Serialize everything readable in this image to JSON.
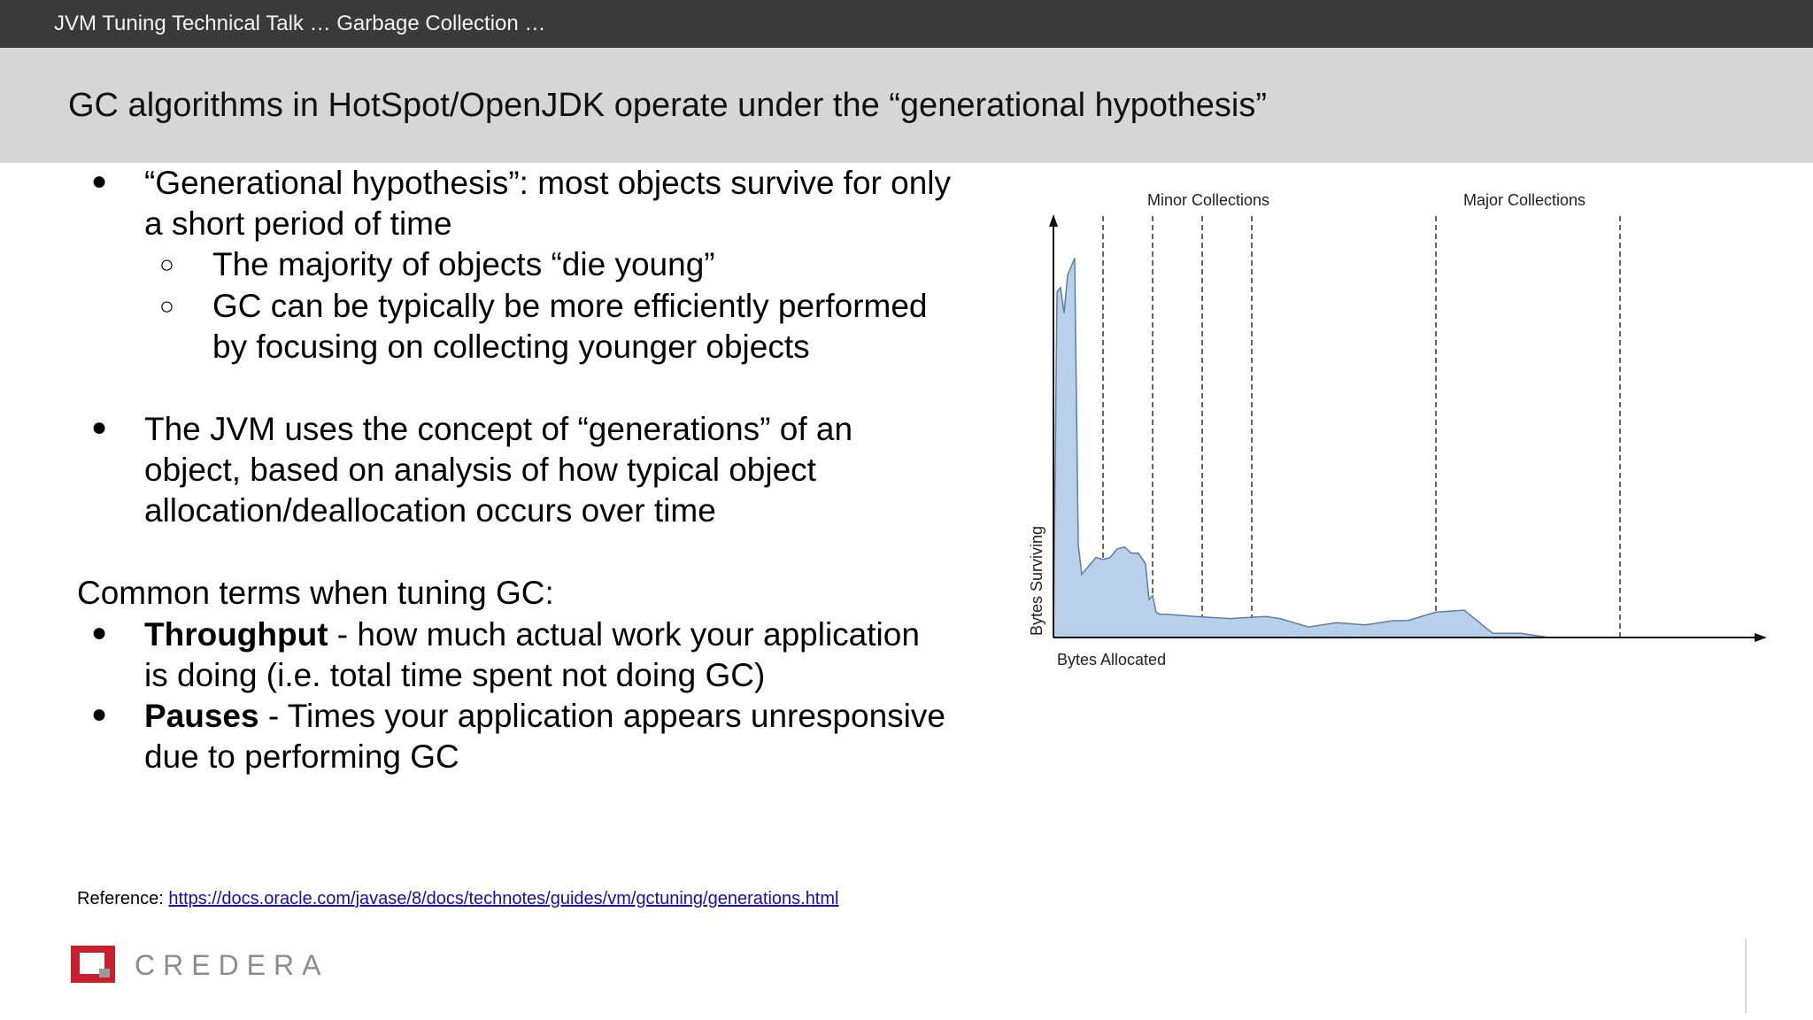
{
  "header": {
    "breadcrumb": "JVM Tuning Technical Talk … Garbage Collection …",
    "title": "GC algorithms in HotSpot/OpenJDK operate under the “generational hypothesis”"
  },
  "body": {
    "bullet1": {
      "line1": "“Generational hypothesis”: most objects survive for only",
      "line2": "a short period of time",
      "sub1": "The majority of objects “die young”",
      "sub2_line1": "GC can be typically be more efficiently performed",
      "sub2_line2": "by focusing on collecting younger objects"
    },
    "bullet2": {
      "line1": "The JVM uses the concept of “generations” of an",
      "line2": "object, based on analysis of how typical object",
      "line3": "allocation/deallocation occurs over time"
    },
    "terms_heading": "Common terms when tuning GC:",
    "term1": {
      "name": "Throughput",
      "line1_rest": " - how much actual work your application",
      "line2": "is doing (i.e. total time spent not doing GC)"
    },
    "term2": {
      "name": "Pauses",
      "line1_rest": " - Times your application appears unresponsive",
      "line2": "due to performing GC"
    },
    "bullet_glyph": "●",
    "sub_bullet_glyph": "○"
  },
  "reference": {
    "label": "Reference: ",
    "url": "https://docs.oracle.com/javase/8/docs/technotes/guides/vm/gctuning/generations.html"
  },
  "logo": {
    "text": "CREDERA",
    "color": "#c8202f"
  },
  "chart_data": {
    "type": "area",
    "xlabel": "Bytes Allocated",
    "ylabel": "Bytes Surviving",
    "annotations": [
      "Minor Collections",
      "Major Collections"
    ],
    "fill_color": "#b8d0ea",
    "line_color": "#5a7fa8",
    "x": [
      0,
      0.5,
      1,
      1.5,
      2,
      2.5,
      3,
      3.5,
      4,
      5,
      6,
      7,
      8,
      9,
      10,
      11,
      12,
      13,
      13.5,
      14,
      14.5,
      15,
      16,
      20,
      25,
      30,
      32,
      36,
      40,
      44,
      48,
      50,
      54,
      58,
      62,
      64,
      66,
      70
    ],
    "y": [
      0,
      82,
      83,
      77,
      86,
      88,
      90,
      22,
      15,
      17,
      19,
      18.5,
      19,
      21,
      21.5,
      20,
      20,
      17.5,
      9,
      10,
      6,
      5.5,
      5.5,
      5,
      4.5,
      5,
      4.5,
      2.5,
      3.5,
      3,
      4,
      4,
      6,
      6.5,
      1,
      1,
      1,
      0
    ],
    "xlim": [
      0,
      100
    ],
    "ylim": [
      0,
      100
    ],
    "minor_collection_x": [
      7,
      14,
      21,
      28
    ],
    "major_collection_x": [
      54,
      80
    ]
  }
}
